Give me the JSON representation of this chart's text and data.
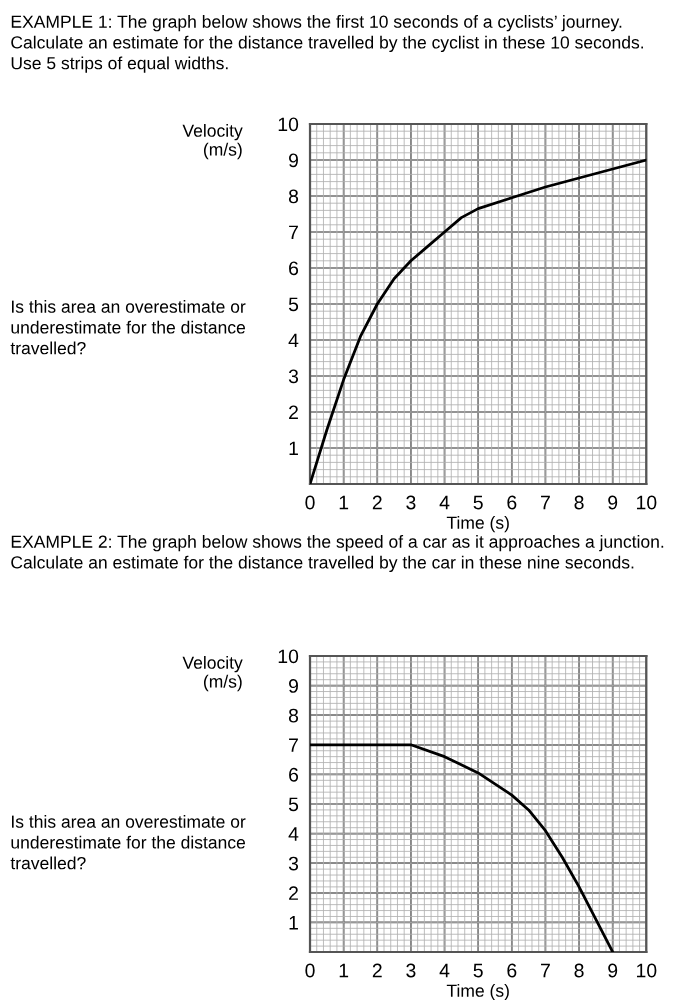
{
  "chart_data": [
    {
      "type": "line",
      "title": "EXAMPLE 1: The graph below shows the first 10 seconds of a cyclists’ journey.\nCalculate an estimate for the distance travelled by the cyclist in these 10 seconds.\nUse 5 strips of equal widths.",
      "xlabel": "Time (s)",
      "ylabel": "Velocity\n(m/s)",
      "annotations": [
        "Is this area an overestimate or\nunderestimate for the distance\ntravelled?"
      ],
      "series": [
        {
          "color": "#000000",
          "x": [
            0,
            0.5,
            1,
            1.5,
            2,
            2.5,
            3,
            3.5,
            4,
            4.5,
            5,
            6,
            7,
            8,
            9,
            10
          ],
          "values": [
            0,
            1.5,
            2.9,
            4.1,
            5,
            5.7,
            6.2,
            6.6,
            7,
            7.4,
            7.65,
            7.95,
            8.25,
            8.5,
            8.75,
            9
          ]
        }
      ],
      "xlim": [
        0,
        10
      ],
      "ylim": [
        0,
        10
      ],
      "xticks": [
        0,
        1,
        2,
        3,
        4,
        5,
        6,
        7,
        8,
        9,
        10
      ],
      "yticks": [
        1,
        2,
        3,
        4,
        5,
        6,
        7,
        8,
        9,
        10
      ],
      "grid": true,
      "marker": "none",
      "line_style": "solid"
    },
    {
      "type": "line",
      "title": "EXAMPLE 2: The graph below shows the speed of a car as it approaches a junction.\nCalculate an estimate for the distance travelled by the car in these nine seconds.",
      "xlabel": "Time (s)",
      "ylabel": "Velocity\n(m/s)",
      "annotations": [
        "Is this area an overestimate or\nunderestimate for the distance\ntravelled?"
      ],
      "series": [
        {
          "color": "#000000",
          "x": [
            0,
            3,
            4,
            5,
            6,
            6.5,
            7,
            7.5,
            8,
            8.5,
            9
          ],
          "values": [
            7,
            7,
            6.6,
            6.05,
            5.3,
            4.8,
            4.1,
            3.2,
            2.2,
            1.1,
            0
          ]
        }
      ],
      "xlim": [
        0,
        10
      ],
      "ylim": [
        0,
        10
      ],
      "xticks": [
        0,
        1,
        2,
        3,
        4,
        5,
        6,
        7,
        8,
        9,
        10
      ],
      "yticks": [
        1,
        2,
        3,
        4,
        5,
        6,
        7,
        8,
        9,
        10
      ],
      "grid": true,
      "marker": "none",
      "line_style": "solid"
    }
  ]
}
